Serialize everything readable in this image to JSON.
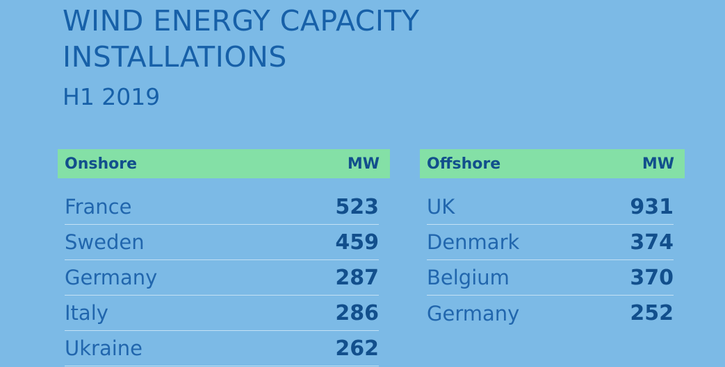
{
  "title_line1": "WIND ENERGY CAPACITY",
  "title_line2": "INSTALLATIONS",
  "subtitle": "H1 2019",
  "chart_data": [
    {
      "type": "table",
      "header": {
        "label": "Onshore",
        "unit": "MW"
      },
      "categories": [
        "France",
        "Sweden",
        "Germany",
        "Italy",
        "Ukraine"
      ],
      "values": [
        523,
        459,
        287,
        286,
        262
      ]
    },
    {
      "type": "table",
      "header": {
        "label": "Offshore",
        "unit": "MW"
      },
      "categories": [
        "UK",
        "Denmark",
        "Belgium",
        "Germany"
      ],
      "values": [
        931,
        374,
        370,
        252
      ]
    }
  ]
}
